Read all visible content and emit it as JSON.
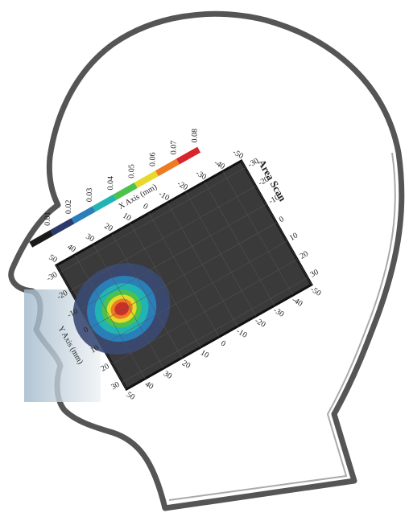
{
  "title": "Area Scan",
  "colorbar": {
    "labels": [
      "0.01",
      "0.02",
      "0.03",
      "0.04",
      "0.05",
      "0.06",
      "0.07",
      "0.08"
    ]
  },
  "x_axis": {
    "label": "X Axis (mm)",
    "ticks": [
      "50",
      "40",
      "30",
      "20",
      "10",
      "0",
      "-10",
      "-20",
      "-30",
      "-40",
      "-50"
    ]
  },
  "y_axis": {
    "label": "Y Axis (mm)",
    "ticks": [
      "-30",
      "-20",
      "-10",
      "0",
      "10",
      "20",
      "30"
    ]
  }
}
